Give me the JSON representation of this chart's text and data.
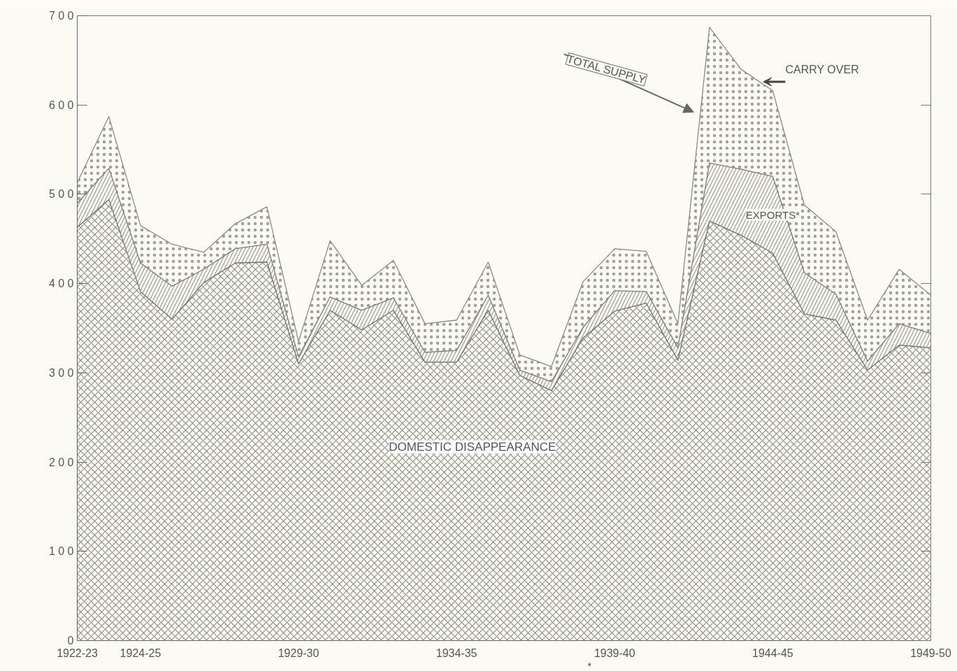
{
  "chart_data": {
    "type": "area",
    "stacked": true,
    "categories": [
      "1922-23",
      null,
      "1924-25",
      null,
      null,
      null,
      null,
      "1929-30",
      null,
      null,
      null,
      null,
      "1934-35",
      null,
      null,
      null,
      null,
      "1939-40",
      null,
      null,
      null,
      null,
      "1944-45",
      null,
      null,
      null,
      null,
      "1949-50"
    ],
    "series": [
      {
        "name": "DOMESTIC DISAPPEARANCE",
        "color": "#6e6e6a",
        "values": [
          463,
          494,
          391,
          360,
          401,
          423,
          424,
          310,
          370,
          348,
          370,
          312,
          312,
          370,
          297,
          280,
          339,
          369,
          378,
          314,
          470,
          454,
          434,
          366,
          359,
          303,
          331,
          328
        ]
      },
      {
        "name": "EXPORTS*",
        "color": "#7a7a76",
        "values": [
          27,
          35,
          32,
          37,
          15,
          16,
          20,
          8,
          15,
          22,
          14,
          11,
          13,
          17,
          6,
          10,
          12,
          23,
          13,
          14,
          65,
          74,
          86,
          46,
          29,
          10,
          24,
          16
        ]
      },
      {
        "name": "CARRY OVER",
        "color": "#8a8a86",
        "values": [
          23,
          58,
          42,
          47,
          19,
          28,
          42,
          17,
          63,
          28,
          42,
          32,
          34,
          37,
          17,
          17,
          51,
          47,
          45,
          27,
          152,
          112,
          96,
          76,
          70,
          46,
          61,
          43
        ]
      }
    ],
    "annotations": [
      "TOTAL SUPPLY",
      "*"
    ],
    "ylim": [
      0,
      700
    ],
    "yticks": [
      0,
      100,
      200,
      300,
      400,
      500,
      600,
      700
    ],
    "grid": false
  }
}
